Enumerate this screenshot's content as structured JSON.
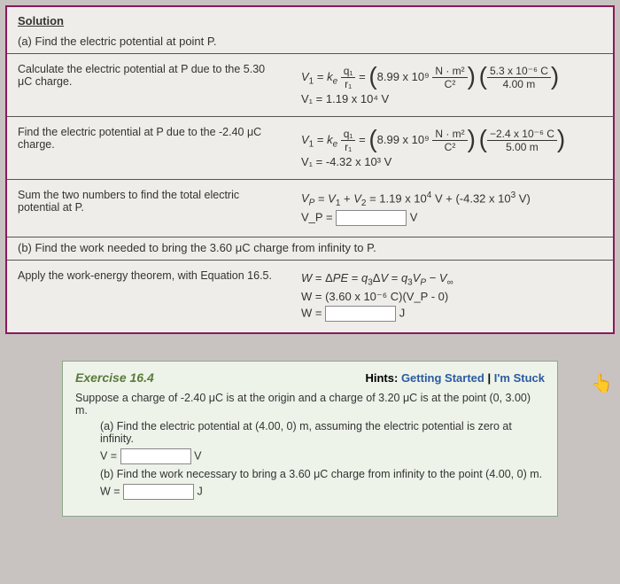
{
  "solution": {
    "title": "Solution",
    "partA": "(a) Find the electric potential at point P.",
    "row1": {
      "left": "Calculate the electric potential at P due to the 5.30 μC charge.",
      "eq1_lhs": "V₁ = k_e",
      "frac1_top": "q₁",
      "frac1_bot": "r₁",
      "k_val": "8.99 x 10⁹",
      "k_units_top": "N · m²",
      "k_units_bot": "C²",
      "q_top": "5.3 x 10⁻⁶ C",
      "q_bot": "4.00 m",
      "result": "V₁ = 1.19 x 10⁴ V"
    },
    "row2": {
      "left": "Find the electric potential at P due to the -2.40 μC charge.",
      "eq1_lhs": "V₁ = k_e",
      "frac1_top": "q₁",
      "frac1_bot": "r₁",
      "k_val": "8.99 x 10⁹",
      "k_units_top": "N · m²",
      "k_units_bot": "C²",
      "q_top": "−2.4 x 10⁻⁶ C",
      "q_bot": "5.00 m",
      "result": "V₁ = -4.32 x 10³ V"
    },
    "row3": {
      "left": "Sum the two numbers to find the total electric potential at P.",
      "eq1": "V_P = V₁ + V₂ = 1.19 x 10⁴ V + (-4.32 x 10³ V)",
      "eq2_lhs": "V_P =",
      "unit": "V"
    },
    "partB": "(b) Find the work needed to bring the 3.60 μC charge from infinity to P.",
    "row4": {
      "left": "Apply the work-energy theorem, with Equation 16.5.",
      "eq1": "W = ΔPE = q₃ΔV = q₃V_P − V_∞",
      "eq2": "W = (3.60 x 10⁻⁶ C)(V_P - 0)",
      "eq3_lhs": "W =",
      "unit": "J"
    }
  },
  "exercise": {
    "title": "Exercise 16.4",
    "hints_label": "Hints:",
    "hint1": "Getting Started",
    "hint_sep": " | ",
    "hint2": "I'm Stuck",
    "intro": "Suppose a charge of -2.40 μC is at the origin and a charge of 3.20 μC is at the point (0, 3.00) m.",
    "qa": "(a) Find the electric potential at (4.00, 0) m, assuming the electric potential is zero at infinity.",
    "qa_lhs": "V =",
    "qa_unit": "V",
    "qb": "(b) Find the work necessary to bring a 3.60 μC charge from infinity to the point (4.00, 0) m.",
    "qb_lhs": "W =",
    "qb_unit": "J"
  },
  "colors": {
    "page_bg": "#c8c3c0",
    "panel_bg": "#f8f7f5",
    "panel_border": "#8a1a5c",
    "row_bg": "#efede9",
    "exercise_bg": "#eef3ea",
    "exercise_border": "#8aa88a",
    "ex_title": "#5a7a3a",
    "link": "#2a5aa0"
  }
}
